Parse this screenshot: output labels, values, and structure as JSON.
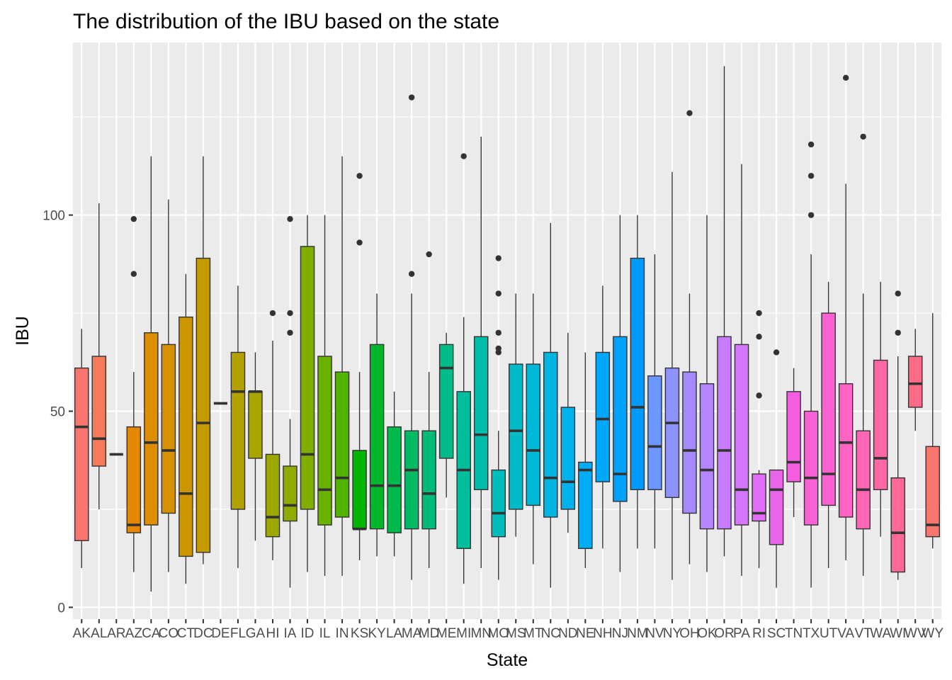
{
  "chart_data": {
    "type": "boxplot",
    "title": "The distribution of the IBU based on the state",
    "xlabel": "State",
    "ylabel": "IBU",
    "ylim": [
      -3,
      144
    ],
    "y_ticks": [
      0,
      50,
      100
    ],
    "grid": true,
    "legend": "none",
    "series": [
      {
        "name": "AK",
        "color": "#F8766D",
        "whisker_low": 10,
        "q1": 17,
        "median": 46,
        "q3": 61,
        "whisker_high": 71,
        "outliers": []
      },
      {
        "name": "AL",
        "color": "#F37B59",
        "whisker_low": 25,
        "q1": 36,
        "median": 43,
        "q3": 64,
        "whisker_high": 103,
        "outliers": []
      },
      {
        "name": "AR",
        "color": "#ED813E",
        "whisker_low": 39,
        "q1": 39,
        "median": 39,
        "q3": 39,
        "whisker_high": 39,
        "outliers": []
      },
      {
        "name": "AZ",
        "color": "#E58700",
        "whisker_low": 9,
        "q1": 19,
        "median": 21,
        "q3": 46,
        "whisker_high": 60,
        "outliers": [
          85,
          99
        ]
      },
      {
        "name": "CA",
        "color": "#DE8C00",
        "whisker_low": 4,
        "q1": 21,
        "median": 42,
        "q3": 70,
        "whisker_high": 115,
        "outliers": []
      },
      {
        "name": "CO",
        "color": "#D69100",
        "whisker_low": 9,
        "q1": 24,
        "median": 40,
        "q3": 67,
        "whisker_high": 104,
        "outliers": []
      },
      {
        "name": "CT",
        "color": "#CD9600",
        "whisker_low": 6,
        "q1": 13,
        "median": 29,
        "q3": 74,
        "whisker_high": 85,
        "outliers": []
      },
      {
        "name": "DC",
        "color": "#C49A00",
        "whisker_low": 11,
        "q1": 14,
        "median": 47,
        "q3": 89,
        "whisker_high": 115,
        "outliers": []
      },
      {
        "name": "DE",
        "color": "#BB9D00",
        "whisker_low": 52,
        "q1": 52,
        "median": 52,
        "q3": 52,
        "whisker_high": 52,
        "outliers": []
      },
      {
        "name": "FL",
        "color": "#B2A100",
        "whisker_low": 10,
        "q1": 25,
        "median": 55,
        "q3": 65,
        "whisker_high": 82,
        "outliers": []
      },
      {
        "name": "GA",
        "color": "#A8A400",
        "whisker_low": 17,
        "q1": 38,
        "median": 55,
        "q3": 55,
        "whisker_high": 65,
        "outliers": []
      },
      {
        "name": "HI",
        "color": "#9CA700",
        "whisker_low": 12,
        "q1": 18,
        "median": 23,
        "q3": 39,
        "whisker_high": 68,
        "outliers": [
          75
        ]
      },
      {
        "name": "IA",
        "color": "#8FAA00",
        "whisker_low": 5,
        "q1": 22,
        "median": 26,
        "q3": 36,
        "whisker_high": 48,
        "outliers": [
          70,
          75,
          99
        ]
      },
      {
        "name": "ID",
        "color": "#7FAE00",
        "whisker_low": 9,
        "q1": 25,
        "median": 39,
        "q3": 92,
        "whisker_high": 100,
        "outliers": []
      },
      {
        "name": "IL",
        "color": "#6BB100",
        "whisker_low": 8,
        "q1": 21,
        "median": 30,
        "q3": 64,
        "whisker_high": 100,
        "outliers": []
      },
      {
        "name": "IN",
        "color": "#4FB300",
        "whisker_low": 8,
        "q1": 23,
        "median": 33,
        "q3": 60,
        "whisker_high": 115,
        "outliers": []
      },
      {
        "name": "KS",
        "color": "#00B500",
        "whisker_low": 12,
        "q1": 20,
        "median": 20,
        "q3": 40,
        "whisker_high": 60,
        "outliers": [
          93,
          110
        ]
      },
      {
        "name": "KY",
        "color": "#00B72E",
        "whisker_low": 13,
        "q1": 20,
        "median": 31,
        "q3": 67,
        "whisker_high": 80,
        "outliers": []
      },
      {
        "name": "LA",
        "color": "#00B94D",
        "whisker_low": 13,
        "q1": 19,
        "median": 31,
        "q3": 46,
        "whisker_high": 55,
        "outliers": []
      },
      {
        "name": "MA",
        "color": "#00BA64",
        "whisker_low": 7,
        "q1": 20,
        "median": 35,
        "q3": 45,
        "whisker_high": 80,
        "outliers": [
          85,
          130
        ]
      },
      {
        "name": "MD",
        "color": "#00BB78",
        "whisker_low": 10,
        "q1": 20,
        "median": 29,
        "q3": 45,
        "whisker_high": 60,
        "outliers": [
          90
        ]
      },
      {
        "name": "ME",
        "color": "#00BC8A",
        "whisker_low": 28,
        "q1": 38,
        "median": 61,
        "q3": 67,
        "whisker_high": 70,
        "outliers": []
      },
      {
        "name": "MI",
        "color": "#00BD9B",
        "whisker_low": 6,
        "q1": 15,
        "median": 35,
        "q3": 55,
        "whisker_high": 74,
        "outliers": [
          115
        ]
      },
      {
        "name": "MN",
        "color": "#00BDAB",
        "whisker_low": 10,
        "q1": 30,
        "median": 44,
        "q3": 69,
        "whisker_high": 120,
        "outliers": []
      },
      {
        "name": "MO",
        "color": "#00BCBA",
        "whisker_low": 7,
        "q1": 18,
        "median": 24,
        "q3": 35,
        "whisker_high": 45,
        "outliers": [
          65,
          66,
          70,
          80,
          89
        ]
      },
      {
        "name": "MS",
        "color": "#00BAC8",
        "whisker_low": 18,
        "q1": 25,
        "median": 45,
        "q3": 62,
        "whisker_high": 80,
        "outliers": []
      },
      {
        "name": "MT",
        "color": "#00B8D5",
        "whisker_low": 11,
        "q1": 26,
        "median": 40,
        "q3": 62,
        "whisker_high": 80,
        "outliers": []
      },
      {
        "name": "NC",
        "color": "#00B5E1",
        "whisker_low": 5,
        "q1": 23,
        "median": 33,
        "q3": 65,
        "whisker_high": 98,
        "outliers": []
      },
      {
        "name": "ND",
        "color": "#00B1EC",
        "whisker_low": 19,
        "q1": 25,
        "median": 32,
        "q3": 51,
        "whisker_high": 70,
        "outliers": []
      },
      {
        "name": "NE",
        "color": "#00ACF5",
        "whisker_low": 10,
        "q1": 15,
        "median": 35,
        "q3": 37,
        "whisker_high": 65,
        "outliers": []
      },
      {
        "name": "NH",
        "color": "#00A7FD",
        "whisker_low": 15,
        "q1": 32,
        "median": 48,
        "q3": 65,
        "whisker_high": 82,
        "outliers": []
      },
      {
        "name": "NJ",
        "color": "#00A1FF",
        "whisker_low": 9,
        "q1": 27,
        "median": 34,
        "q3": 69,
        "whisker_high": 100,
        "outliers": []
      },
      {
        "name": "NM",
        "color": "#009AFF",
        "whisker_low": 15,
        "q1": 30,
        "median": 51,
        "q3": 89,
        "whisker_high": 100,
        "outliers": []
      },
      {
        "name": "NV",
        "color": "#6C97FF",
        "whisker_low": 15,
        "q1": 30,
        "median": 41,
        "q3": 59,
        "whisker_high": 90,
        "outliers": []
      },
      {
        "name": "NY",
        "color": "#8E92FF",
        "whisker_low": 7,
        "q1": 28,
        "median": 47,
        "q3": 61,
        "whisker_high": 111,
        "outliers": []
      },
      {
        "name": "OH",
        "color": "#A58AFF",
        "whisker_low": 11,
        "q1": 24,
        "median": 40,
        "q3": 60,
        "whisker_high": 80,
        "outliers": [
          126
        ]
      },
      {
        "name": "OK",
        "color": "#B784FF",
        "whisker_low": 9,
        "q1": 20,
        "median": 35,
        "q3": 57,
        "whisker_high": 100,
        "outliers": []
      },
      {
        "name": "OR",
        "color": "#C77CFF",
        "whisker_low": 13,
        "q1": 20,
        "median": 40,
        "q3": 69,
        "whisker_high": 138,
        "outliers": []
      },
      {
        "name": "PA",
        "color": "#D574FD",
        "whisker_low": 8,
        "q1": 21,
        "median": 30,
        "q3": 67,
        "whisker_high": 113,
        "outliers": []
      },
      {
        "name": "RI",
        "color": "#E16CF5",
        "whisker_low": 10,
        "q1": 22,
        "median": 24,
        "q3": 34,
        "whisker_high": 35,
        "outliers": [
          54,
          69,
          75
        ]
      },
      {
        "name": "SC",
        "color": "#EB64EC",
        "whisker_low": 5,
        "q1": 16,
        "median": 30,
        "q3": 35,
        "whisker_high": 35,
        "outliers": [
          65
        ]
      },
      {
        "name": "TN",
        "color": "#F35EE1",
        "whisker_low": 23,
        "q1": 32,
        "median": 37,
        "q3": 55,
        "whisker_high": 61,
        "outliers": []
      },
      {
        "name": "TX",
        "color": "#F962D6",
        "whisker_low": 5,
        "q1": 21,
        "median": 33,
        "q3": 50,
        "whisker_high": 90,
        "outliers": [
          100,
          110,
          118
        ]
      },
      {
        "name": "UT",
        "color": "#FD61D1",
        "whisker_low": 10,
        "q1": 26,
        "median": 34,
        "q3": 75,
        "whisker_high": 83,
        "outliers": []
      },
      {
        "name": "VA",
        "color": "#FF63C4",
        "whisker_low": 12,
        "q1": 23,
        "median": 42,
        "q3": 57,
        "whisker_high": 108,
        "outliers": [
          135
        ]
      },
      {
        "name": "VT",
        "color": "#FF66B6",
        "whisker_low": 8,
        "q1": 20,
        "median": 30,
        "q3": 45,
        "whisker_high": 80,
        "outliers": [
          120
        ]
      },
      {
        "name": "WA",
        "color": "#FF67A7",
        "whisker_low": 18,
        "q1": 30,
        "median": 38,
        "q3": 63,
        "whisker_high": 83,
        "outliers": []
      },
      {
        "name": "WI",
        "color": "#FF6897",
        "whisker_low": 7,
        "q1": 9,
        "median": 19,
        "q3": 33,
        "whisker_high": 64,
        "outliers": [
          70,
          80
        ]
      },
      {
        "name": "WV",
        "color": "#FF6A88",
        "whisker_low": 45,
        "q1": 51,
        "median": 57,
        "q3": 64,
        "whisker_high": 71,
        "outliers": []
      },
      {
        "name": "WY",
        "color": "#F8766D",
        "whisker_low": 15,
        "q1": 18,
        "median": 21,
        "q3": 41,
        "whisker_high": 75,
        "outliers": []
      }
    ]
  }
}
